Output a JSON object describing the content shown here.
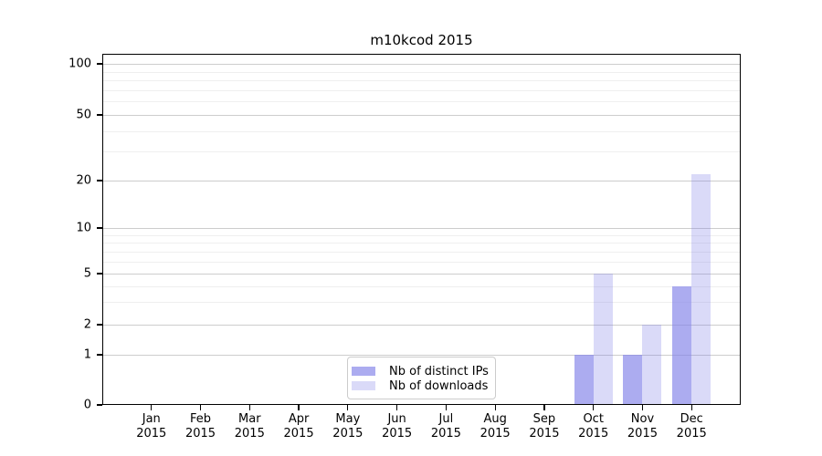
{
  "chart_data": {
    "type": "bar",
    "title": "m10kcod 2015",
    "categories": [
      "Jan 2015",
      "Feb 2015",
      "Mar 2015",
      "Apr 2015",
      "May 2015",
      "Jun 2015",
      "Jul 2015",
      "Aug 2015",
      "Sep 2015",
      "Oct 2015",
      "Nov 2015",
      "Dec 2015"
    ],
    "series": [
      {
        "name": "Nb of distinct IPs",
        "values": [
          0,
          0,
          0,
          0,
          0,
          0,
          0,
          0,
          0,
          1,
          1,
          4
        ],
        "color": "rgba(128,128,232,0.65)",
        "legend_color": "#acacf0"
      },
      {
        "name": "Nb of downloads",
        "values": [
          0,
          0,
          0,
          0,
          0,
          0,
          0,
          0,
          0,
          5,
          2,
          22
        ],
        "color": "rgba(128,128,232,0.29)",
        "legend_color": "#dadaf8"
      }
    ],
    "xlabel": "",
    "ylabel": "",
    "y_axis": {
      "scale": "log-like",
      "major_ticks": [
        0,
        1,
        2,
        5,
        10,
        20,
        50,
        100
      ],
      "minor_ticks": [
        3,
        4,
        6,
        7,
        8,
        9,
        30,
        40,
        60,
        70,
        80,
        90
      ],
      "ylim": [
        0,
        115
      ]
    },
    "grid": "horizontal major and minor gridlines",
    "legend_position": "bottom-center inside plot"
  }
}
